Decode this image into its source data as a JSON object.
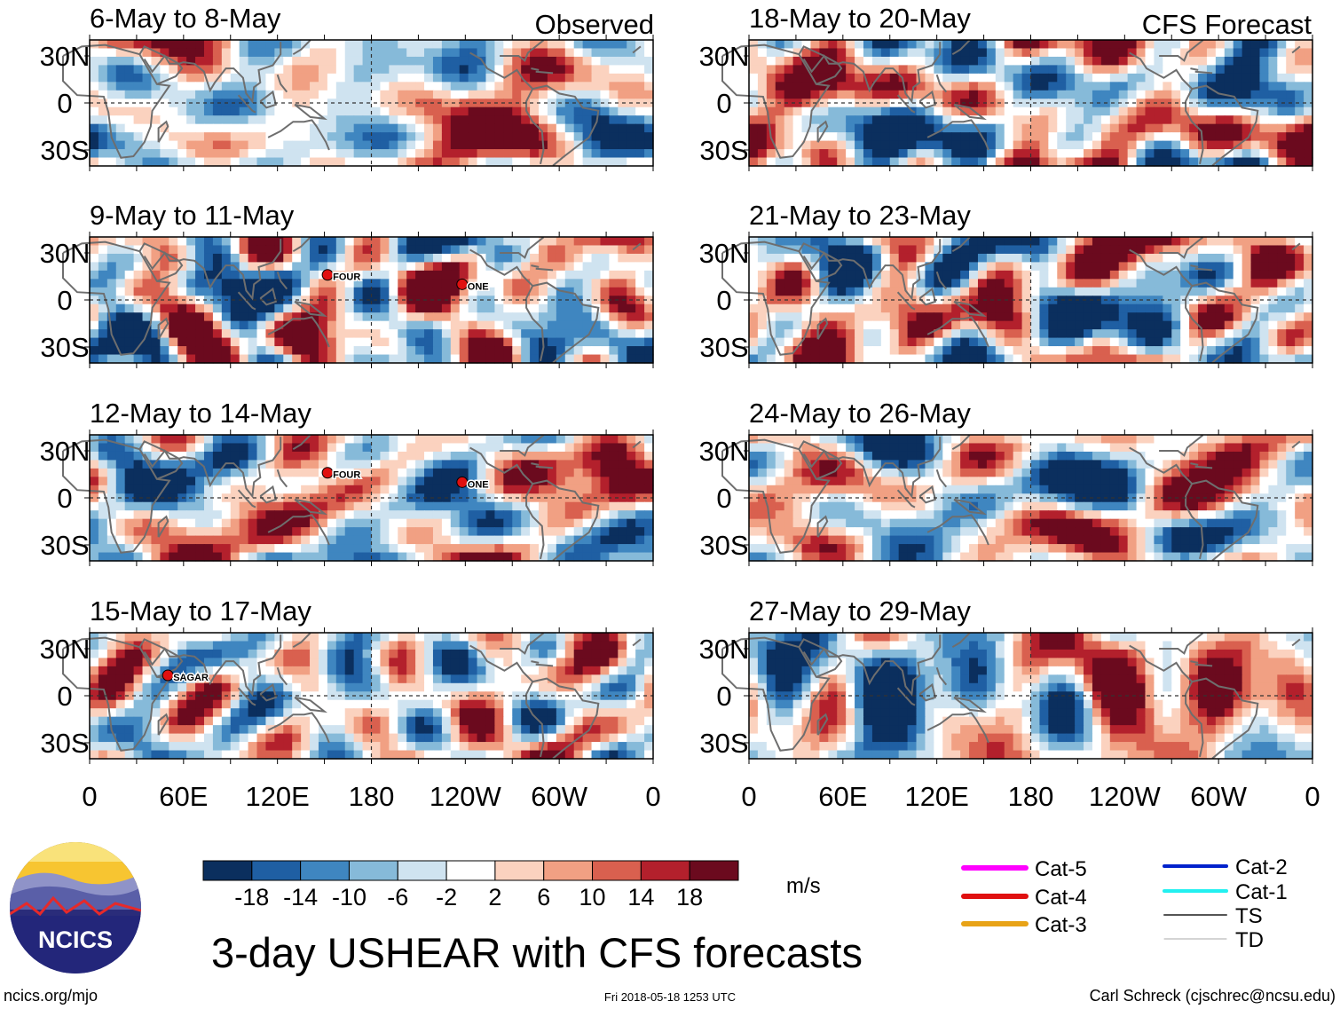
{
  "chart_data": {
    "type": "heatmap",
    "title": "3-day USHEAR with CFS forecasts",
    "units": "m/s",
    "colorbar": {
      "levels": [
        -18,
        -14,
        -10,
        -6,
        -2,
        2,
        6,
        10,
        14,
        18
      ],
      "tick_labels": [
        "-18",
        "-14",
        "-10",
        "-6",
        "-2",
        "2",
        "6",
        "10",
        "14",
        "18"
      ],
      "colors": [
        "#0b2f5e",
        "#1f5fa3",
        "#3f86c0",
        "#86bad9",
        "#cfe3f0",
        "#ffffff",
        "#fbd2bf",
        "#f1a083",
        "#d9604f",
        "#b3202c",
        "#6b0a1e"
      ]
    },
    "x_ticks": [
      "0",
      "60E",
      "120E",
      "180",
      "120W",
      "60W",
      "0"
    ],
    "y_ticks": [
      "30N",
      "0",
      "30S"
    ],
    "column_headers": {
      "left": "Observed",
      "right": "CFS Forecast"
    },
    "panels": {
      "observed": [
        {
          "period": "6-May to 8-May",
          "storms": []
        },
        {
          "period": "9-May to 11-May",
          "storms": [
            {
              "name": "FOUR",
              "lon": 152,
              "lat": 16
            },
            {
              "name": "ONE",
              "lon": 238,
              "lat": 10
            }
          ]
        },
        {
          "period": "12-May to 14-May",
          "storms": [
            {
              "name": "FOUR",
              "lon": 152,
              "lat": 16
            },
            {
              "name": "ONE",
              "lon": 238,
              "lat": 10
            }
          ]
        },
        {
          "period": "15-May to 17-May",
          "storms": [
            {
              "name": "SAGAR",
              "lon": 50,
              "lat": 13
            }
          ]
        }
      ],
      "forecast": [
        {
          "period": "18-May to 20-May"
        },
        {
          "period": "21-May to 23-May"
        },
        {
          "period": "24-May to 26-May"
        },
        {
          "period": "27-May to 29-May"
        }
      ]
    },
    "storm_legend": [
      {
        "label": "Cat-5",
        "color": "#ff00ff"
      },
      {
        "label": "Cat-4",
        "color": "#e01010"
      },
      {
        "label": "Cat-3",
        "color": "#e8a317"
      },
      {
        "label": "Cat-2",
        "color": "#0022cc"
      },
      {
        "label": "Cat-1",
        "color": "#22f0f0"
      },
      {
        "label": "TS",
        "color": "#555555"
      },
      {
        "label": "TD",
        "color": "#aaaaaa"
      }
    ]
  },
  "logo_text": "NCICS",
  "footer": {
    "left": "ncics.org/mjo",
    "center": "Fri 2018-05-18 1253 UTC",
    "right": "Carl Schreck (cjschrec@ncsu.edu)"
  }
}
